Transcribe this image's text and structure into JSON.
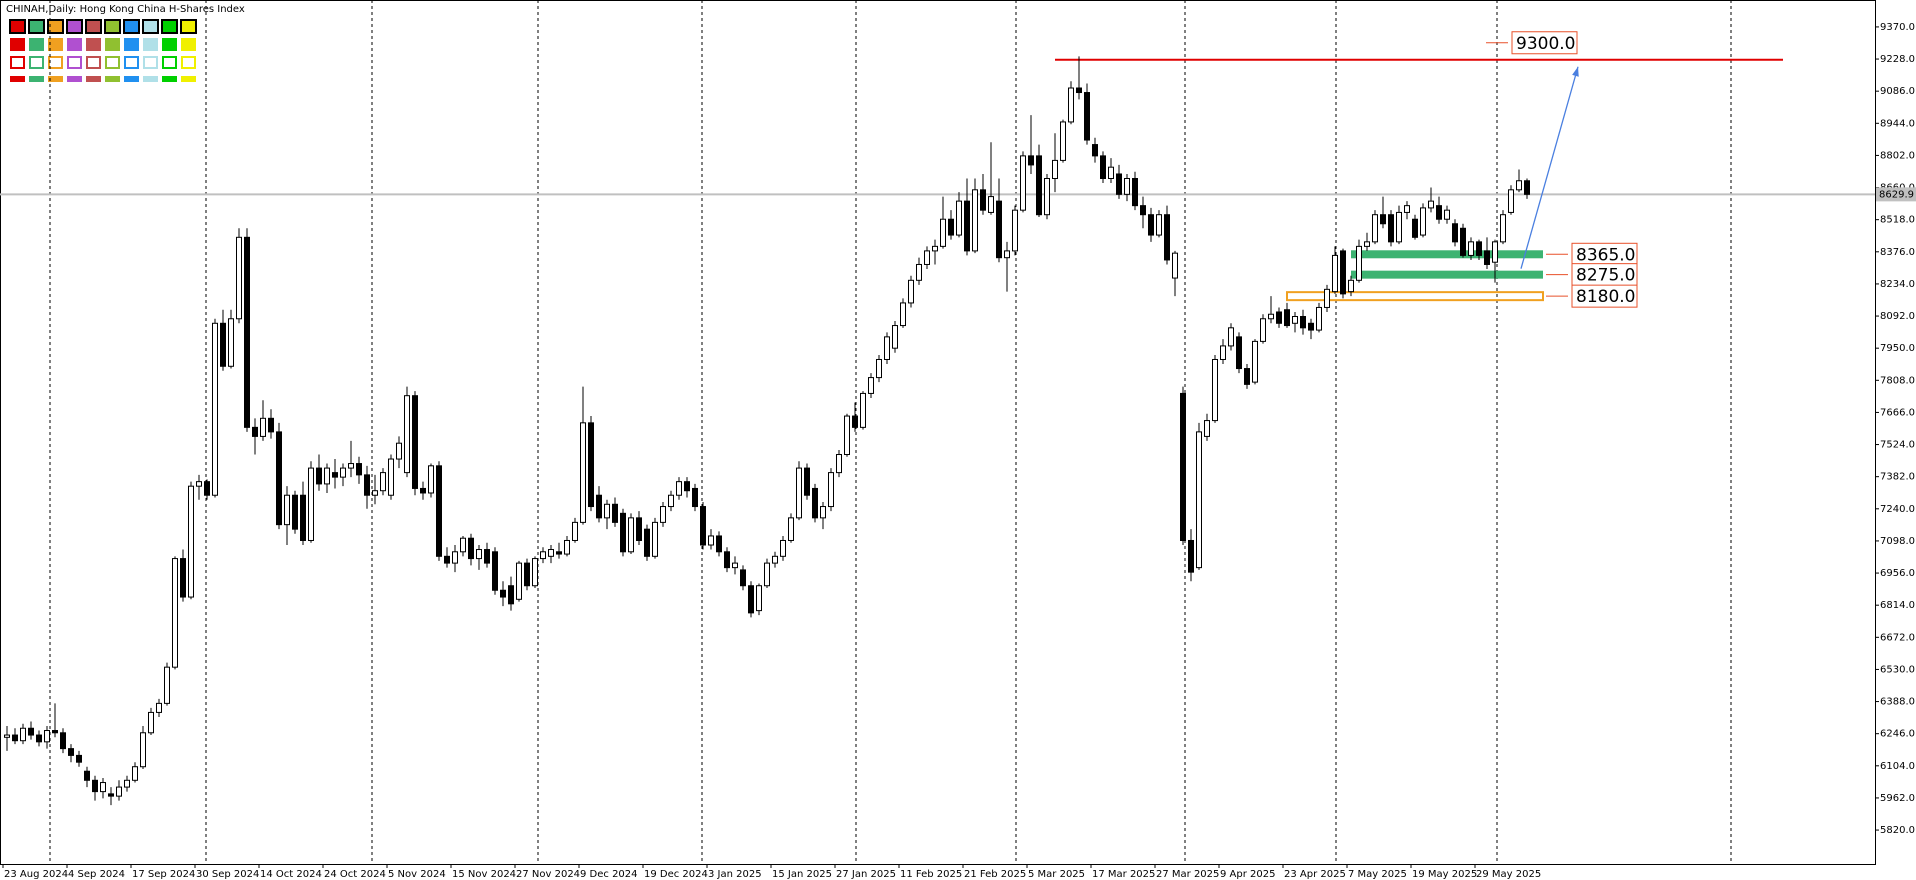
{
  "chart_data": {
    "type": "candlestick",
    "title": "CHINAH,Daily:  Hong Kong China H-Shares Index",
    "categories": [
      "23 Aug 2024",
      null,
      null,
      null,
      null,
      null,
      null,
      null,
      "4 Sep 2024",
      null,
      null,
      null,
      null,
      null,
      null,
      null,
      "17 Sep 2024",
      null,
      null,
      null,
      null,
      null,
      null,
      null,
      "30 Sep 2024",
      null,
      null,
      null,
      null,
      null,
      null,
      null,
      "14 Oct 2024",
      null,
      null,
      null,
      null,
      null,
      null,
      null,
      "24 Oct 2024",
      null,
      null,
      null,
      null,
      null,
      null,
      null,
      "5 Nov 2024",
      null,
      null,
      null,
      null,
      null,
      null,
      null,
      "15 Nov 2024",
      null,
      null,
      null,
      null,
      null,
      null,
      null,
      "27 Nov 2024",
      null,
      null,
      null,
      null,
      null,
      null,
      null,
      "9 Dec 2024",
      null,
      null,
      null,
      null,
      null,
      null,
      null,
      "19 Dec 2024",
      null,
      null,
      null,
      null,
      null,
      null,
      null,
      "3 Jan 2025",
      null,
      null,
      null,
      null,
      null,
      null,
      null,
      "15 Jan 2025",
      null,
      null,
      null,
      null,
      null,
      null,
      null,
      "27 Jan 2025",
      null,
      null,
      null,
      null,
      null,
      null,
      null,
      "11 Feb 2025",
      null,
      null,
      null,
      null,
      null,
      null,
      null,
      "21 Feb 2025",
      null,
      null,
      null,
      null,
      null,
      null,
      null,
      "5 Mar 2025",
      null,
      null,
      null,
      null,
      null,
      null,
      null,
      "17 Mar 2025",
      null,
      null,
      null,
      null,
      null,
      null,
      null,
      "27 Mar 2025",
      null,
      null,
      null,
      null,
      null,
      null,
      null,
      "9 Apr 2025",
      null,
      null,
      null,
      null,
      null,
      null,
      null,
      "23 Apr 2025",
      null,
      null,
      null,
      null,
      null,
      null,
      null,
      "7 May 2025",
      null,
      null,
      null,
      null,
      null,
      null,
      null,
      "19 May 2025",
      null,
      null,
      null,
      null,
      null,
      null,
      null,
      "29 May 2025",
      null,
      null,
      null,
      null,
      null,
      null
    ],
    "candles": [
      [
        6230,
        6280,
        6170,
        6240
      ],
      [
        6240,
        6270,
        6200,
        6215
      ],
      [
        6215,
        6290,
        6200,
        6270
      ],
      [
        6270,
        6300,
        6220,
        6240
      ],
      [
        6240,
        6260,
        6190,
        6210
      ],
      [
        6210,
        6280,
        6180,
        6260
      ],
      [
        6260,
        6380,
        6230,
        6250
      ],
      [
        6250,
        6270,
        6160,
        6180
      ],
      [
        6180,
        6200,
        6120,
        6150
      ],
      [
        6150,
        6170,
        6100,
        6120
      ],
      [
        6080,
        6100,
        6010,
        6040
      ],
      [
        6040,
        6060,
        5950,
        5990
      ],
      [
        5990,
        6050,
        5960,
        6030
      ],
      [
        5980,
        6010,
        5930,
        5970
      ],
      [
        5970,
        6040,
        5950,
        6010
      ],
      [
        6010,
        6060,
        5990,
        6040
      ],
      [
        6040,
        6120,
        6030,
        6100
      ],
      [
        6100,
        6280,
        6090,
        6250
      ],
      [
        6250,
        6360,
        6240,
        6340
      ],
      [
        6340,
        6400,
        6320,
        6380
      ],
      [
        6380,
        6560,
        6370,
        6540
      ],
      [
        6540,
        7030,
        6530,
        7020
      ],
      [
        7020,
        7060,
        6830,
        6850
      ],
      [
        6850,
        7360,
        6840,
        7340
      ],
      [
        7340,
        7390,
        7280,
        7360
      ],
      [
        7360,
        7370,
        7280,
        7300
      ],
      [
        7300,
        8080,
        7290,
        8060
      ],
      [
        8060,
        8120,
        7850,
        7870
      ],
      [
        7870,
        8120,
        7860,
        8080
      ],
      [
        8080,
        8480,
        8060,
        8440
      ],
      [
        8440,
        8480,
        7580,
        7600
      ],
      [
        7600,
        7640,
        7480,
        7560
      ],
      [
        7560,
        7720,
        7540,
        7640
      ],
      [
        7640,
        7680,
        7550,
        7580
      ],
      [
        7580,
        7620,
        7150,
        7170
      ],
      [
        7170,
        7340,
        7080,
        7300
      ],
      [
        7300,
        7320,
        7130,
        7150
      ],
      [
        7300,
        7360,
        7080,
        7100
      ],
      [
        7100,
        7450,
        7090,
        7420
      ],
      [
        7420,
        7480,
        7320,
        7350
      ],
      [
        7350,
        7440,
        7310,
        7420
      ],
      [
        7400,
        7460,
        7330,
        7380
      ],
      [
        7380,
        7440,
        7340,
        7420
      ],
      [
        7420,
        7540,
        7380,
        7440
      ],
      [
        7440,
        7470,
        7350,
        7390
      ],
      [
        7390,
        7430,
        7240,
        7300
      ],
      [
        7300,
        7390,
        7260,
        7320
      ],
      [
        7320,
        7420,
        7300,
        7400
      ],
      [
        7300,
        7480,
        7280,
        7460
      ],
      [
        7460,
        7560,
        7420,
        7530
      ],
      [
        7400,
        7780,
        7380,
        7740
      ],
      [
        7740,
        7760,
        7300,
        7330
      ],
      [
        7330,
        7360,
        7280,
        7310
      ],
      [
        7310,
        7440,
        7290,
        7430
      ],
      [
        7430,
        7450,
        7010,
        7030
      ],
      [
        7030,
        7070,
        6980,
        7000
      ],
      [
        7000,
        7080,
        6960,
        7050
      ],
      [
        7050,
        7120,
        7030,
        7110
      ],
      [
        7110,
        7130,
        6990,
        7020
      ],
      [
        7020,
        7080,
        6970,
        7060
      ],
      [
        7060,
        7090,
        6980,
        7000
      ],
      [
        7050,
        7070,
        6860,
        6880
      ],
      [
        6880,
        6920,
        6810,
        6850
      ],
      [
        6900,
        6940,
        6790,
        6820
      ],
      [
        6840,
        7010,
        6830,
        7000
      ],
      [
        7000,
        7020,
        6880,
        6900
      ],
      [
        6900,
        7030,
        6890,
        7020
      ],
      [
        7020,
        7070,
        7000,
        7050
      ],
      [
        7030,
        7080,
        7000,
        7060
      ],
      [
        7050,
        7090,
        7020,
        7040
      ],
      [
        7040,
        7120,
        7030,
        7100
      ],
      [
        7100,
        7200,
        7090,
        7180
      ],
      [
        7180,
        7780,
        7170,
        7620
      ],
      [
        7620,
        7650,
        7230,
        7250
      ],
      [
        7300,
        7340,
        7180,
        7200
      ],
      [
        7200,
        7280,
        7150,
        7260
      ],
      [
        7260,
        7290,
        7160,
        7180
      ],
      [
        7220,
        7240,
        7030,
        7050
      ],
      [
        7050,
        7220,
        7040,
        7200
      ],
      [
        7200,
        7230,
        7080,
        7100
      ],
      [
        7150,
        7170,
        7010,
        7030
      ],
      [
        7030,
        7200,
        7020,
        7180
      ],
      [
        7180,
        7270,
        7160,
        7250
      ],
      [
        7250,
        7320,
        7230,
        7300
      ],
      [
        7300,
        7380,
        7280,
        7360
      ],
      [
        7360,
        7380,
        7290,
        7320
      ],
      [
        7330,
        7350,
        7230,
        7250
      ],
      [
        7250,
        7270,
        7060,
        7080
      ],
      [
        7080,
        7150,
        7060,
        7120
      ],
      [
        7120,
        7140,
        7030,
        7050
      ],
      [
        7050,
        7070,
        6960,
        6980
      ],
      [
        6980,
        7030,
        6950,
        7000
      ],
      [
        6970,
        6990,
        6880,
        6900
      ],
      [
        6900,
        6920,
        6760,
        6780
      ],
      [
        6790,
        6910,
        6770,
        6900
      ],
      [
        6900,
        7020,
        6890,
        7000
      ],
      [
        7000,
        7050,
        6980,
        7030
      ],
      [
        7030,
        7120,
        7010,
        7100
      ],
      [
        7100,
        7220,
        7090,
        7200
      ],
      [
        7200,
        7450,
        7190,
        7420
      ],
      [
        7420,
        7440,
        7280,
        7300
      ],
      [
        7330,
        7350,
        7180,
        7200
      ],
      [
        7200,
        7270,
        7150,
        7250
      ],
      [
        7250,
        7420,
        7230,
        7400
      ],
      [
        7400,
        7500,
        7380,
        7480
      ],
      [
        7480,
        7660,
        7470,
        7650
      ],
      [
        7650,
        7710,
        7580,
        7600
      ],
      [
        7600,
        7760,
        7590,
        7750
      ],
      [
        7750,
        7840,
        7730,
        7820
      ],
      [
        7820,
        7920,
        7800,
        7900
      ],
      [
        7900,
        8020,
        7880,
        8000
      ],
      [
        7950,
        8070,
        7930,
        8050
      ],
      [
        8050,
        8170,
        8040,
        8150
      ],
      [
        8150,
        8270,
        8130,
        8250
      ],
      [
        8250,
        8350,
        8230,
        8320
      ],
      [
        8320,
        8400,
        8300,
        8380
      ],
      [
        8380,
        8430,
        8320,
        8400
      ],
      [
        8400,
        8620,
        8390,
        8520
      ],
      [
        8520,
        8560,
        8430,
        8450
      ],
      [
        8450,
        8640,
        8440,
        8600
      ],
      [
        8600,
        8700,
        8360,
        8380
      ],
      [
        8380,
        8700,
        8370,
        8650
      ],
      [
        8650,
        8720,
        8540,
        8560
      ],
      [
        8550,
        8860,
        8540,
        8620
      ],
      [
        8600,
        8700,
        8330,
        8350
      ],
      [
        8350,
        8420,
        8200,
        8380
      ],
      [
        8380,
        8580,
        8360,
        8560
      ],
      [
        8560,
        8820,
        8550,
        8800
      ],
      [
        8800,
        8980,
        8720,
        8760
      ],
      [
        8800,
        8850,
        8530,
        8540
      ],
      [
        8540,
        8720,
        8520,
        8700
      ],
      [
        8700,
        8900,
        8640,
        8780
      ],
      [
        8780,
        8960,
        8770,
        8950
      ],
      [
        8950,
        9130,
        8940,
        9100
      ],
      [
        9100,
        9240,
        9050,
        9080
      ],
      [
        9080,
        9120,
        8850,
        8870
      ],
      [
        8850,
        8880,
        8770,
        8800
      ],
      [
        8800,
        8820,
        8680,
        8700
      ],
      [
        8700,
        8790,
        8680,
        8750
      ],
      [
        8720,
        8760,
        8610,
        8630
      ],
      [
        8630,
        8720,
        8600,
        8700
      ],
      [
        8700,
        8730,
        8560,
        8580
      ],
      [
        8580,
        8620,
        8480,
        8540
      ],
      [
        8540,
        8570,
        8420,
        8450
      ],
      [
        8450,
        8560,
        8440,
        8540
      ],
      [
        8540,
        8580,
        8320,
        8340
      ],
      [
        8260,
        8380,
        8180,
        8370
      ],
      [
        7750,
        7780,
        7080,
        7100
      ],
      [
        7100,
        7150,
        6920,
        6960
      ],
      [
        6980,
        7620,
        6970,
        7580
      ],
      [
        7560,
        7660,
        7540,
        7630
      ],
      [
        7630,
        7920,
        7620,
        7900
      ],
      [
        7900,
        7990,
        7880,
        7960
      ],
      [
        7960,
        8060,
        7940,
        8040
      ],
      [
        8000,
        8020,
        7840,
        7860
      ],
      [
        7860,
        7880,
        7770,
        7790
      ],
      [
        7800,
        7990,
        7790,
        7980
      ],
      [
        7980,
        8100,
        7970,
        8080
      ],
      [
        8080,
        8180,
        8060,
        8100
      ],
      [
        8110,
        8130,
        8040,
        8060
      ],
      [
        8120,
        8150,
        8040,
        8050
      ],
      [
        8060,
        8110,
        8020,
        8090
      ],
      [
        8090,
        8120,
        8010,
        8040
      ],
      [
        8060,
        8080,
        7990,
        8030
      ],
      [
        8030,
        8150,
        8020,
        8130
      ],
      [
        8130,
        8230,
        8110,
        8210
      ],
      [
        8200,
        8400,
        8190,
        8360
      ],
      [
        8380,
        8390,
        8170,
        8190
      ],
      [
        8200,
        8270,
        8180,
        8250
      ],
      [
        8250,
        8430,
        8240,
        8400
      ],
      [
        8400,
        8460,
        8380,
        8420
      ],
      [
        8420,
        8560,
        8410,
        8540
      ],
      [
        8540,
        8620,
        8480,
        8500
      ],
      [
        8540,
        8560,
        8400,
        8420
      ],
      [
        8420,
        8580,
        8410,
        8550
      ],
      [
        8550,
        8600,
        8520,
        8580
      ],
      [
        8520,
        8540,
        8430,
        8440
      ],
      [
        8450,
        8590,
        8440,
        8570
      ],
      [
        8570,
        8660,
        8550,
        8600
      ],
      [
        8580,
        8620,
        8500,
        8520
      ],
      [
        8520,
        8580,
        8500,
        8560
      ],
      [
        8500,
        8520,
        8400,
        8420
      ],
      [
        8480,
        8500,
        8350,
        8360
      ],
      [
        8360,
        8440,
        8340,
        8420
      ],
      [
        8420,
        8430,
        8340,
        8360
      ],
      [
        8380,
        8440,
        8300,
        8320
      ],
      [
        8330,
        8430,
        8240,
        8420
      ],
      [
        8420,
        8560,
        8410,
        8540
      ],
      [
        8550,
        8670,
        8540,
        8650
      ],
      [
        8650,
        8740,
        8640,
        8690
      ],
      [
        8690,
        8700,
        8610,
        8630
      ]
    ],
    "ylim": [
      5670,
      9489
    ],
    "yticks": [
      {
        "value": 5820,
        "label": "5820.0"
      },
      {
        "value": 5962,
        "label": "5962.0"
      },
      {
        "value": 6104,
        "label": "6104.0"
      },
      {
        "value": 6246,
        "label": "6246.0"
      },
      {
        "value": 6388,
        "label": "6388.0"
      },
      {
        "value": 6530,
        "label": "6530.0"
      },
      {
        "value": 6672,
        "label": "6672.0"
      },
      {
        "value": 6814,
        "label": "6814.0"
      },
      {
        "value": 6956,
        "label": "6956.0"
      },
      {
        "value": 7098,
        "label": "7098.0"
      },
      {
        "value": 7240,
        "label": "7240.0"
      },
      {
        "value": 7382,
        "label": "7382.0"
      },
      {
        "value": 7524,
        "label": "7524.0"
      },
      {
        "value": 7666,
        "label": "7666.0"
      },
      {
        "value": 7808,
        "label": "7808.0"
      },
      {
        "value": 7950,
        "label": "7950.0"
      },
      {
        "value": 8092,
        "label": "8092.0"
      },
      {
        "value": 8234,
        "label": "8234.0"
      },
      {
        "value": 8376,
        "label": "8376.0"
      },
      {
        "value": 8518,
        "label": "8518.0"
      },
      {
        "value": 8660,
        "label": "8660.0"
      },
      {
        "value": 8802,
        "label": "8802.0"
      },
      {
        "value": 8944,
        "label": "8944.0"
      },
      {
        "value": 9086,
        "label": "9086.0"
      },
      {
        "value": 9228,
        "label": "9228.0"
      },
      {
        "value": 9370,
        "label": "9370.0"
      }
    ],
    "grid": true,
    "current_price": 8629.9,
    "resistance_line": {
      "value": 9225,
      "color": "#e00000"
    },
    "levels": [
      {
        "value": 9300,
        "label": "9300.0",
        "style": "label",
        "color": "#e8502a"
      },
      {
        "value": 8365,
        "label": "8365.0",
        "style": "zone",
        "color": "#3cb371"
      },
      {
        "value": 8275,
        "label": "8275.0",
        "style": "zone",
        "color": "#3cb371"
      },
      {
        "value": 8180,
        "label": "8180.0",
        "style": "box",
        "color": "#f0a020"
      }
    ],
    "arrow_color": "#4a7fe0"
  }
}
